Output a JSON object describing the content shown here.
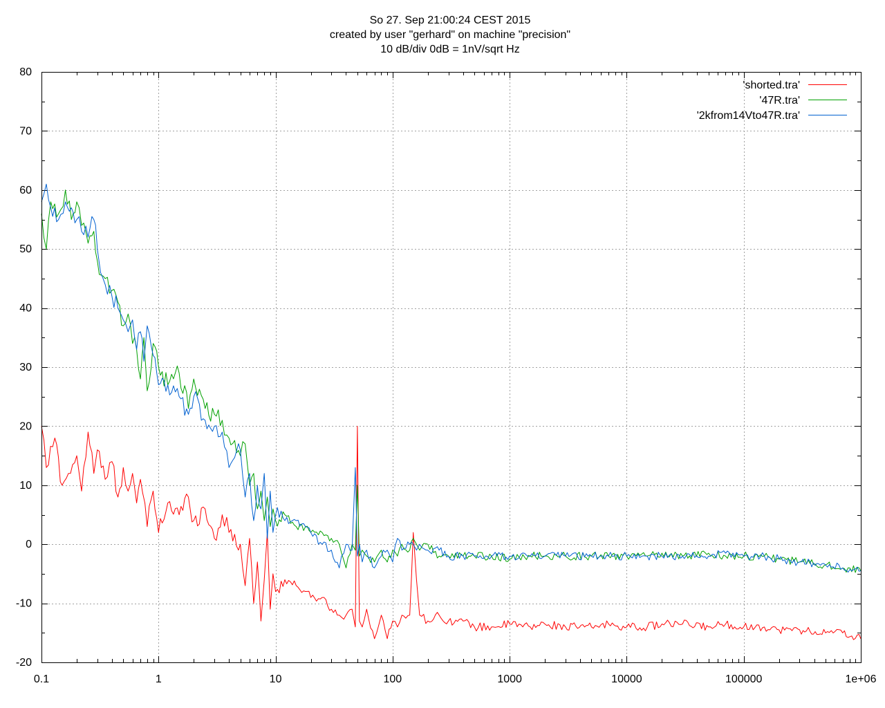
{
  "chart_data": {
    "type": "line",
    "title_lines": [
      "So 27. Sep 21:00:24 CEST 2015",
      "created by user \"gerhard\" on machine \"precision\"",
      "10 dB/div   0dB = 1nV/sqrt Hz"
    ],
    "xlabel": "",
    "ylabel": "",
    "x_scale": "log",
    "xlim": [
      0.1,
      1000000
    ],
    "ylim": [
      -20,
      80
    ],
    "grid": true,
    "legend_position": "top-right",
    "x_ticks": [
      {
        "value": 0.1,
        "label": "0.1"
      },
      {
        "value": 1,
        "label": "1"
      },
      {
        "value": 10,
        "label": "10"
      },
      {
        "value": 100,
        "label": "100"
      },
      {
        "value": 1000,
        "label": "1000"
      },
      {
        "value": 10000,
        "label": "10000"
      },
      {
        "value": 100000,
        "label": "100000"
      },
      {
        "value": 1000000,
        "label": "1e+06"
      }
    ],
    "y_ticks": [
      {
        "value": 80,
        "label": "80"
      },
      {
        "value": 70,
        "label": "70"
      },
      {
        "value": 60,
        "label": "60"
      },
      {
        "value": 50,
        "label": "50"
      },
      {
        "value": 40,
        "label": "40"
      },
      {
        "value": 30,
        "label": "30"
      },
      {
        "value": 20,
        "label": "20"
      },
      {
        "value": 10,
        "label": "10"
      },
      {
        "value": 0,
        "label": "0"
      },
      {
        "value": -10,
        "label": "-10"
      },
      {
        "value": -20,
        "label": "-20"
      }
    ],
    "series": [
      {
        "name": "'shorted.tra'",
        "color": "#ff0000",
        "x": [
          0.1,
          0.11,
          0.13,
          0.15,
          0.17,
          0.2,
          0.22,
          0.25,
          0.28,
          0.3,
          0.35,
          0.4,
          0.45,
          0.5,
          0.55,
          0.6,
          0.65,
          0.7,
          0.8,
          0.9,
          1.0,
          1.2,
          1.5,
          1.8,
          2.0,
          2.5,
          3.0,
          3.5,
          4.0,
          5.0,
          5.5,
          6.0,
          6.5,
          7.0,
          7.5,
          8.0,
          8.5,
          9.0,
          9.5,
          10,
          12,
          15,
          18,
          20,
          25,
          30,
          35,
          40,
          45,
          48,
          50,
          52,
          55,
          60,
          70,
          80,
          90,
          100,
          110,
          120,
          140,
          150,
          160,
          170,
          200,
          250,
          300,
          400,
          500,
          700,
          1000,
          1500,
          2000,
          3000,
          5000,
          7000,
          10000,
          15000,
          20000,
          30000,
          50000,
          70000,
          100000,
          150000,
          200000,
          300000,
          500000,
          700000,
          1000000
        ],
        "y": [
          20,
          13,
          18,
          10,
          12,
          15,
          9,
          19,
          12,
          16,
          11,
          14,
          8,
          13,
          9,
          12,
          7,
          11,
          3,
          9,
          2,
          7,
          5,
          8,
          4,
          6,
          1,
          5,
          2,
          0,
          -7,
          1,
          -10,
          -3,
          -13,
          -6,
          2,
          -11,
          -5,
          -8,
          -6,
          -7,
          -8,
          -9,
          -9,
          -11,
          -12,
          -12,
          -11,
          -14,
          20,
          -13,
          -14,
          -11,
          -16,
          -12,
          -16,
          -13,
          -14,
          -12,
          -12,
          2,
          -6,
          -12,
          -13,
          -12,
          -13,
          -13,
          -14,
          -14,
          -13.5,
          -14,
          -13.5,
          -14,
          -14,
          -13.5,
          -14,
          -14,
          -13.5,
          -13.5,
          -14,
          -13.5,
          -14,
          -14,
          -14.5,
          -14.5,
          -15,
          -15,
          -16
        ]
      },
      {
        "name": "'47R.tra'",
        "color": "#00a000",
        "x": [
          0.1,
          0.11,
          0.12,
          0.14,
          0.16,
          0.18,
          0.2,
          0.22,
          0.25,
          0.28,
          0.3,
          0.35,
          0.4,
          0.45,
          0.5,
          0.55,
          0.6,
          0.65,
          0.7,
          0.75,
          0.8,
          0.9,
          1.0,
          1.2,
          1.5,
          1.8,
          2.0,
          2.5,
          3.0,
          3.5,
          4.0,
          5.0,
          5.5,
          6.0,
          6.5,
          7.0,
          7.5,
          8.0,
          8.5,
          9.0,
          9.5,
          10,
          12,
          15,
          18,
          20,
          25,
          30,
          35,
          40,
          45,
          48,
          50,
          52,
          55,
          60,
          70,
          80,
          90,
          100,
          110,
          120,
          140,
          150,
          160,
          170,
          200,
          250,
          300,
          400,
          500,
          700,
          1000,
          1500,
          2000,
          3000,
          5000,
          7000,
          10000,
          15000,
          20000,
          30000,
          50000,
          70000,
          100000,
          150000,
          200000,
          300000,
          500000,
          700000,
          1000000
        ],
        "y": [
          56,
          50,
          58,
          56,
          60,
          55,
          58,
          54,
          51,
          53,
          48,
          45,
          43,
          41,
          37,
          39,
          34,
          33,
          28,
          35,
          26,
          34,
          30,
          27,
          29,
          23,
          28,
          23,
          22,
          21,
          18,
          15,
          17,
          10,
          12,
          6,
          9,
          4,
          8,
          3,
          6,
          4,
          5,
          3,
          3,
          2,
          2,
          1,
          0,
          -4,
          0,
          -1,
          10,
          -2,
          -1,
          -2,
          -3,
          -1,
          -3,
          -1,
          -2,
          0,
          -1,
          1,
          0,
          -1,
          0,
          -2,
          -2,
          -2,
          -2,
          -2,
          -2.5,
          -2,
          -2,
          -2,
          -2,
          -2,
          -2,
          -2,
          -1.5,
          -2,
          -1.5,
          -2,
          -2,
          -2,
          -2.5,
          -3,
          -3.5,
          -4,
          -4.5
        ]
      },
      {
        "name": "'2kfrom14Vto47R.tra'",
        "color": "#0060d0",
        "x": [
          0.1,
          0.11,
          0.12,
          0.14,
          0.16,
          0.18,
          0.2,
          0.22,
          0.25,
          0.28,
          0.3,
          0.32,
          0.35,
          0.4,
          0.45,
          0.5,
          0.55,
          0.6,
          0.65,
          0.7,
          0.75,
          0.8,
          0.9,
          1.0,
          1.2,
          1.5,
          1.8,
          2.0,
          2.5,
          3.0,
          3.5,
          4.0,
          5.0,
          5.5,
          6.0,
          6.5,
          7.0,
          7.5,
          8.0,
          8.5,
          9.0,
          9.5,
          10,
          12,
          15,
          18,
          20,
          25,
          30,
          35,
          40,
          45,
          48,
          50,
          52,
          55,
          60,
          70,
          80,
          90,
          100,
          110,
          120,
          140,
          150,
          160,
          170,
          200,
          250,
          300,
          400,
          500,
          700,
          1000,
          1500,
          2000,
          3000,
          5000,
          7000,
          10000,
          15000,
          20000,
          30000,
          50000,
          70000,
          100000,
          150000,
          200000,
          300000,
          500000,
          700000,
          1000000
        ],
        "y": [
          58,
          61,
          57,
          55,
          58,
          57,
          55,
          53,
          52,
          55,
          50,
          46,
          44,
          42,
          40,
          38,
          36,
          38,
          33,
          36,
          31,
          37,
          32,
          27,
          27,
          25,
          22,
          25,
          21,
          20,
          19,
          13,
          16,
          8,
          12,
          4,
          10,
          6,
          12,
          1,
          9,
          2,
          5,
          4,
          4,
          3,
          2,
          0,
          -1,
          -4,
          0,
          -1,
          13,
          -2,
          0,
          -3,
          -1,
          -4,
          -2,
          -1,
          -3,
          1,
          -1,
          0,
          0,
          -1,
          0,
          -1,
          -1,
          -2,
          -2,
          -2,
          -2,
          -2,
          -2,
          -2,
          -2,
          -2,
          -2,
          -2,
          -2,
          -2,
          -2,
          -2,
          -1.5,
          -2,
          -2,
          -2.5,
          -3,
          -3.5,
          -4,
          -4.5
        ]
      }
    ]
  }
}
